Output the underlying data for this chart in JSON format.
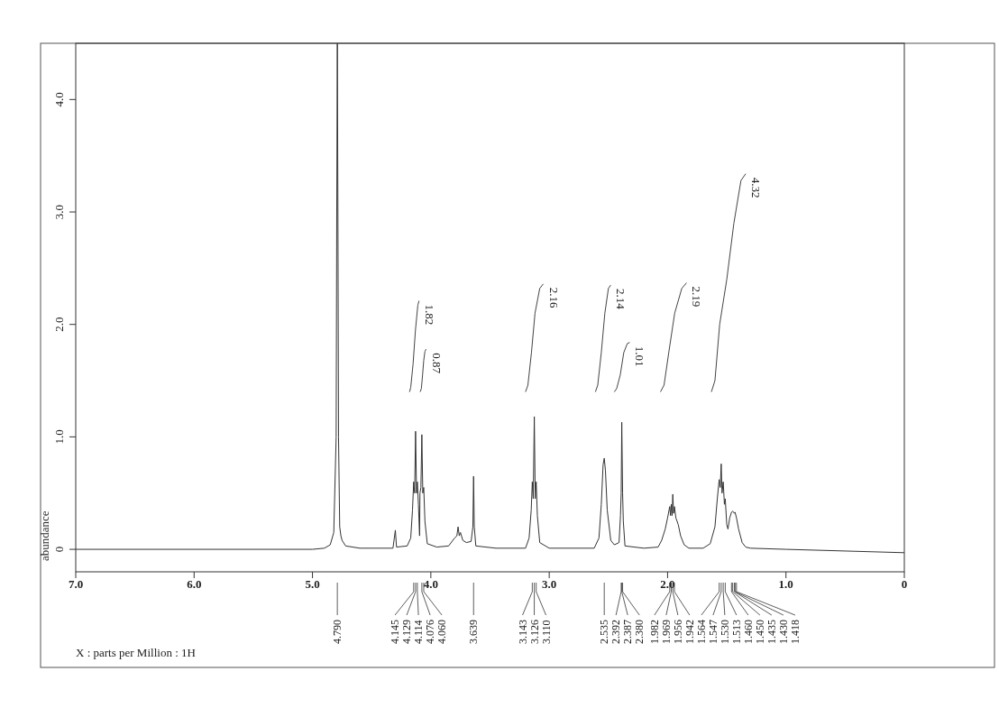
{
  "chart_data": {
    "type": "line",
    "xlabel": "X : parts per Million : 1H",
    "ylabel": "abundance",
    "xlim": [
      7.0,
      0
    ],
    "xticks": [
      {
        "value": 7,
        "label": "7.0"
      },
      {
        "value": 6,
        "label": "6.0"
      },
      {
        "value": 5,
        "label": "5.0"
      },
      {
        "value": 4,
        "label": "4.0"
      },
      {
        "value": 3,
        "label": "3.0"
      },
      {
        "value": 2,
        "label": "2.0"
      },
      {
        "value": 1,
        "label": "1.0"
      },
      0
    ],
    "ylim": [
      -0.2,
      4.5
    ],
    "yticks": [
      0,
      {
        "value": 1,
        "label": "1.0"
      },
      {
        "value": 2,
        "label": "2.0"
      },
      {
        "value": 3,
        "label": "3.0"
      },
      {
        "value": 4,
        "label": "4.0"
      }
    ],
    "grid": false,
    "marker": "none",
    "series": [
      {
        "color": "#333333",
        "x": [
          7.0,
          5.0,
          4.9,
          4.85,
          4.82,
          4.8,
          4.795,
          4.79,
          4.785,
          4.78,
          4.77,
          4.76,
          4.75,
          4.72,
          4.6,
          4.32,
          4.3,
          4.29,
          4.2,
          4.17,
          4.155,
          4.145,
          4.137,
          4.129,
          4.121,
          4.114,
          4.105,
          4.095,
          4.092,
          4.084,
          4.076,
          4.068,
          4.06,
          4.05,
          4.03,
          3.95,
          3.85,
          3.8,
          3.78,
          3.77,
          3.76,
          3.75,
          3.73,
          3.7,
          3.66,
          3.645,
          3.639,
          3.633,
          3.62,
          3.45,
          3.2,
          3.17,
          3.152,
          3.143,
          3.135,
          3.126,
          3.118,
          3.11,
          3.1,
          3.08,
          3.0,
          2.62,
          2.58,
          2.56,
          2.545,
          2.535,
          2.525,
          2.51,
          2.48,
          2.45,
          2.41,
          2.398,
          2.392,
          2.387,
          2.38,
          2.374,
          2.36,
          2.2,
          2.08,
          2.05,
          2.02,
          2.0,
          1.982,
          1.975,
          1.969,
          1.962,
          1.956,
          1.949,
          1.942,
          1.93,
          1.91,
          1.89,
          1.86,
          1.82,
          1.7,
          1.64,
          1.6,
          1.58,
          1.564,
          1.555,
          1.547,
          1.54,
          1.53,
          1.52,
          1.513,
          1.5,
          1.49,
          1.475,
          1.46,
          1.45,
          1.435,
          1.43,
          1.418,
          1.4,
          1.37,
          1.34,
          1.3,
          1.0,
          0
        ],
        "values": [
          0,
          0,
          0.01,
          0.04,
          0.15,
          1.0,
          3.0,
          4.5,
          3.0,
          1.0,
          0.2,
          0.12,
          0.08,
          0.03,
          0.01,
          0.01,
          0.17,
          0.02,
          0.03,
          0.1,
          0.35,
          0.6,
          0.5,
          1.05,
          0.5,
          0.6,
          0.4,
          0.12,
          0.5,
          0.55,
          1.02,
          0.5,
          0.55,
          0.25,
          0.05,
          0.02,
          0.03,
          0.1,
          0.12,
          0.2,
          0.12,
          0.15,
          0.08,
          0.06,
          0.07,
          0.2,
          0.65,
          0.2,
          0.03,
          0.01,
          0.01,
          0.1,
          0.35,
          0.6,
          0.45,
          1.18,
          0.45,
          0.6,
          0.3,
          0.06,
          0.01,
          0.01,
          0.1,
          0.4,
          0.75,
          0.81,
          0.7,
          0.35,
          0.08,
          0.04,
          0.06,
          0.3,
          0.5,
          1.13,
          0.5,
          0.25,
          0.03,
          0.01,
          0.02,
          0.08,
          0.18,
          0.28,
          0.38,
          0.3,
          0.4,
          0.3,
          0.49,
          0.32,
          0.38,
          0.28,
          0.22,
          0.12,
          0.04,
          0.01,
          0.01,
          0.05,
          0.2,
          0.45,
          0.62,
          0.55,
          0.76,
          0.5,
          0.6,
          0.4,
          0.45,
          0.22,
          0.18,
          0.28,
          0.33,
          0.34,
          0.32,
          0.33,
          0.28,
          0.18,
          0.06,
          0.02,
          0.01,
          0,
          -0.03
        ]
      },
      {
        "color": "#444444",
        "x": [
          4.18,
          4.17,
          4.15,
          4.13,
          4.11,
          4.1
        ],
        "values": [
          1.4,
          1.44,
          1.65,
          1.95,
          2.17,
          2.21
        ]
      },
      {
        "color": "#444444",
        "x": [
          4.09,
          4.08,
          4.07,
          4.06,
          4.05,
          4.04
        ],
        "values": [
          1.4,
          1.43,
          1.55,
          1.68,
          1.76,
          1.78
        ]
      },
      {
        "color": "#444444",
        "x": [
          3.2,
          3.18,
          3.15,
          3.12,
          3.08,
          3.05
        ],
        "values": [
          1.4,
          1.46,
          1.75,
          2.1,
          2.32,
          2.36
        ]
      },
      {
        "color": "#444444",
        "x": [
          2.61,
          2.59,
          2.56,
          2.53,
          2.5,
          2.48
        ],
        "values": [
          1.4,
          1.46,
          1.75,
          2.1,
          2.32,
          2.35
        ]
      },
      {
        "color": "#444444",
        "x": [
          2.45,
          2.43,
          2.4,
          2.37,
          2.34,
          2.32
        ],
        "values": [
          1.4,
          1.43,
          1.55,
          1.75,
          1.83,
          1.84
        ]
      },
      {
        "color": "#444444",
        "x": [
          2.06,
          2.03,
          1.99,
          1.94,
          1.88,
          1.84
        ],
        "values": [
          1.4,
          1.46,
          1.75,
          2.1,
          2.32,
          2.37
        ]
      },
      {
        "color": "#444444",
        "x": [
          1.63,
          1.6,
          1.56,
          1.5,
          1.44,
          1.38,
          1.34
        ],
        "values": [
          1.4,
          1.5,
          2.0,
          2.4,
          2.9,
          3.28,
          3.34
        ]
      }
    ],
    "annotations": [
      {
        "text": "1.82",
        "x": 4.1,
        "y": 2.21
      },
      {
        "text": "0.87",
        "x": 4.04,
        "y": 1.78
      },
      {
        "text": "2.16",
        "x": 3.05,
        "y": 2.36
      },
      {
        "text": "2.14",
        "x": 2.48,
        "y": 2.35
      },
      {
        "text": "1.01",
        "x": 2.32,
        "y": 1.84
      },
      {
        "text": "2.19",
        "x": 1.84,
        "y": 2.37
      },
      {
        "text": "4.32",
        "x": 1.34,
        "y": 3.34
      },
      {
        "text": "4.790",
        "x": 4.79
      },
      {
        "text": "4.145",
        "x": 4.145
      },
      {
        "text": "4.129",
        "x": 4.129
      },
      {
        "text": "4.114",
        "x": 4.114
      },
      {
        "text": "4.076",
        "x": 4.076
      },
      {
        "text": "4.060",
        "x": 4.06
      },
      {
        "text": "3.639",
        "x": 3.639
      },
      {
        "text": "3.143",
        "x": 3.143
      },
      {
        "text": "3.126",
        "x": 3.126
      },
      {
        "text": "3.110",
        "x": 3.11
      },
      {
        "text": "2.535",
        "x": 2.535
      },
      {
        "text": "2.392",
        "x": 2.392
      },
      {
        "text": "2.387",
        "x": 2.387
      },
      {
        "text": "2.380",
        "x": 2.38
      },
      {
        "text": "1.982",
        "x": 1.982
      },
      {
        "text": "1.969",
        "x": 1.969
      },
      {
        "text": "1.956",
        "x": 1.956
      },
      {
        "text": "1.942",
        "x": 1.942
      },
      {
        "text": "1.564",
        "x": 1.564
      },
      {
        "text": "1.547",
        "x": 1.547
      },
      {
        "text": "1.530",
        "x": 1.53
      },
      {
        "text": "1.513",
        "x": 1.513
      },
      {
        "text": "1.460",
        "x": 1.46
      },
      {
        "text": "1.450",
        "x": 1.45
      },
      {
        "text": "1.435",
        "x": 1.435
      },
      {
        "text": "1.430",
        "x": 1.43
      },
      {
        "text": "1.418",
        "x": 1.418
      }
    ]
  }
}
